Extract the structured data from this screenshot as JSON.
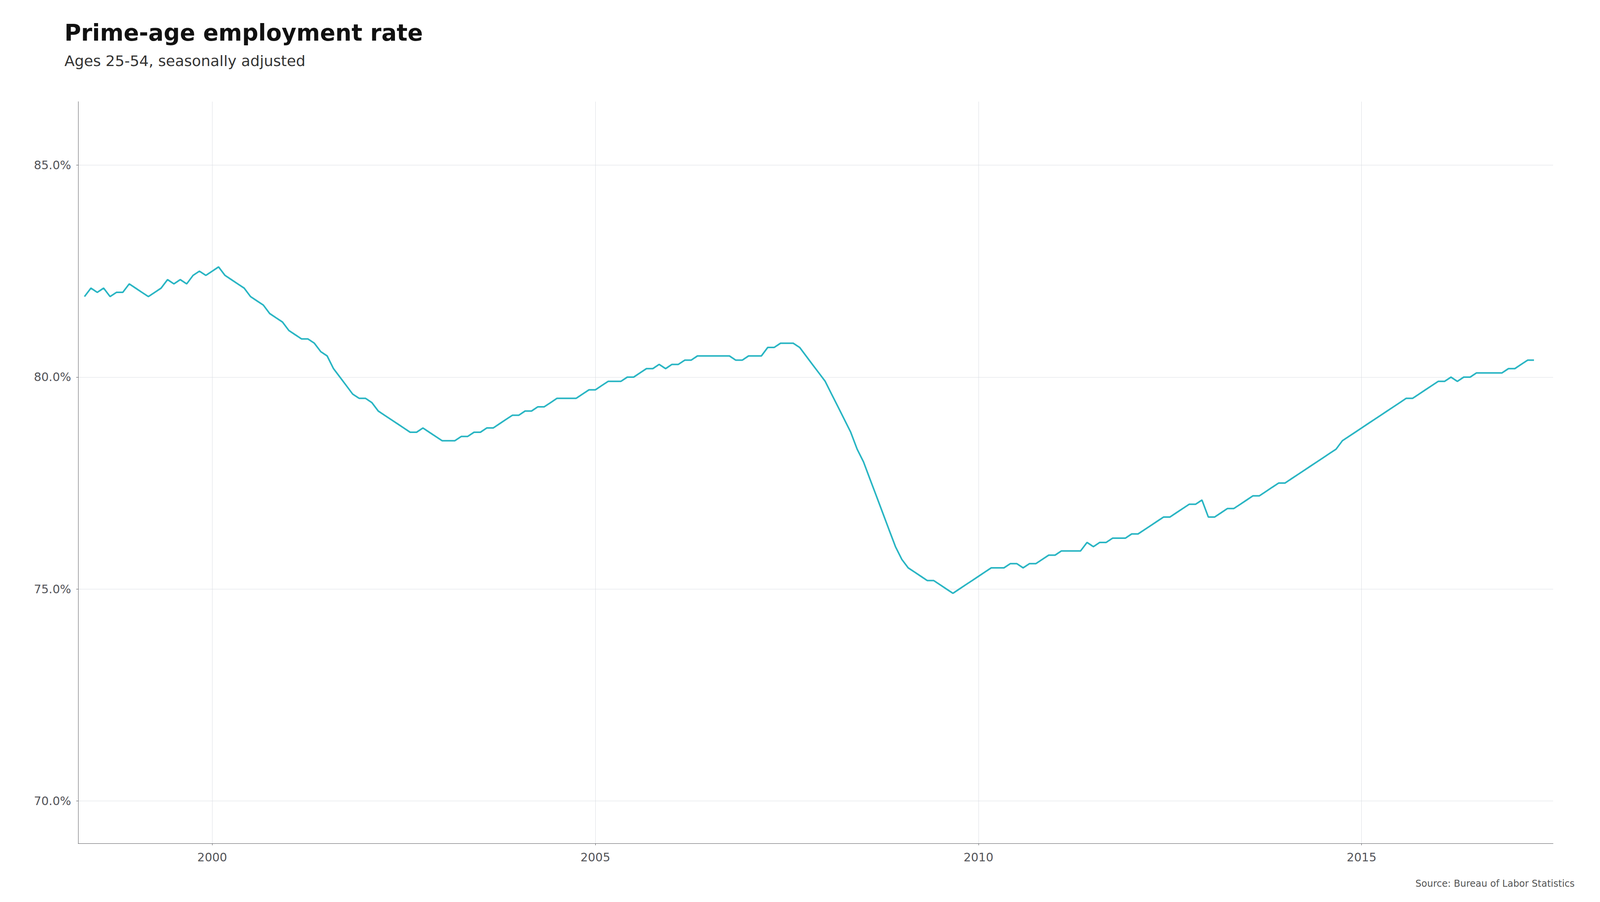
{
  "chart_data": {
    "type": "line",
    "title": "Prime-age employment rate",
    "subtitle": "Ages 25-54, seasonally adjusted",
    "annotations": [
      "Source: Bureau of Labor Statistics"
    ],
    "color": "#29b5c3",
    "grid": true,
    "xlim": [
      1998.25,
      2017.5
    ],
    "xticks": [
      2000,
      2005,
      2010,
      2015
    ],
    "ylim": [
      69.0,
      86.5
    ],
    "yticks": [
      {
        "value": 70.0,
        "label": "70.0%"
      },
      {
        "value": 75.0,
        "label": "75.0%"
      },
      {
        "value": 80.0,
        "label": "80.0%"
      },
      {
        "value": 85.0,
        "label": "85.0%"
      }
    ],
    "x": [
      1998.333,
      1998.417,
      1998.5,
      1998.583,
      1998.667,
      1998.75,
      1998.833,
      1998.917,
      1999.0,
      1999.083,
      1999.167,
      1999.25,
      1999.333,
      1999.417,
      1999.5,
      1999.583,
      1999.667,
      1999.75,
      1999.833,
      1999.917,
      2000.0,
      2000.083,
      2000.167,
      2000.25,
      2000.333,
      2000.417,
      2000.5,
      2000.583,
      2000.667,
      2000.75,
      2000.833,
      2000.917,
      2001.0,
      2001.083,
      2001.167,
      2001.25,
      2001.333,
      2001.417,
      2001.5,
      2001.583,
      2001.667,
      2001.75,
      2001.833,
      2001.917,
      2002.0,
      2002.083,
      2002.167,
      2002.25,
      2002.333,
      2002.417,
      2002.5,
      2002.583,
      2002.667,
      2002.75,
      2002.833,
      2002.917,
      2003.0,
      2003.083,
      2003.167,
      2003.25,
      2003.333,
      2003.417,
      2003.5,
      2003.583,
      2003.667,
      2003.75,
      2003.833,
      2003.917,
      2004.0,
      2004.083,
      2004.167,
      2004.25,
      2004.333,
      2004.417,
      2004.5,
      2004.583,
      2004.667,
      2004.75,
      2004.833,
      2004.917,
      2005.0,
      2005.083,
      2005.167,
      2005.25,
      2005.333,
      2005.417,
      2005.5,
      2005.583,
      2005.667,
      2005.75,
      2005.833,
      2005.917,
      2006.0,
      2006.083,
      2006.167,
      2006.25,
      2006.333,
      2006.417,
      2006.5,
      2006.583,
      2006.667,
      2006.75,
      2006.833,
      2006.917,
      2007.0,
      2007.083,
      2007.167,
      2007.25,
      2007.333,
      2007.417,
      2007.5,
      2007.583,
      2007.667,
      2007.75,
      2007.833,
      2007.917,
      2008.0,
      2008.083,
      2008.167,
      2008.25,
      2008.333,
      2008.417,
      2008.5,
      2008.583,
      2008.667,
      2008.75,
      2008.833,
      2008.917,
      2009.0,
      2009.083,
      2009.167,
      2009.25,
      2009.333,
      2009.417,
      2009.5,
      2009.583,
      2009.667,
      2009.75,
      2009.833,
      2009.917,
      2010.0,
      2010.083,
      2010.167,
      2010.25,
      2010.333,
      2010.417,
      2010.5,
      2010.583,
      2010.667,
      2010.75,
      2010.833,
      2010.917,
      2011.0,
      2011.083,
      2011.167,
      2011.25,
      2011.333,
      2011.417,
      2011.5,
      2011.583,
      2011.667,
      2011.75,
      2011.833,
      2011.917,
      2012.0,
      2012.083,
      2012.167,
      2012.25,
      2012.333,
      2012.417,
      2012.5,
      2012.583,
      2012.667,
      2012.75,
      2012.833,
      2012.917,
      2013.0,
      2013.083,
      2013.167,
      2013.25,
      2013.333,
      2013.417,
      2013.5,
      2013.583,
      2013.667,
      2013.75,
      2013.833,
      2013.917,
      2014.0,
      2014.083,
      2014.167,
      2014.25,
      2014.333,
      2014.417,
      2014.5,
      2014.583,
      2014.667,
      2014.75,
      2014.833,
      2014.917,
      2015.0,
      2015.083,
      2015.167,
      2015.25,
      2015.333,
      2015.417,
      2015.5,
      2015.583,
      2015.667,
      2015.75,
      2015.833,
      2015.917,
      2016.0,
      2016.083,
      2016.167,
      2016.25,
      2016.333,
      2016.417,
      2016.5,
      2016.583,
      2016.667,
      2016.75,
      2016.833,
      2016.917,
      2017.0,
      2017.083,
      2017.167,
      2017.25
    ],
    "values": [
      81.9,
      82.1,
      82.0,
      82.1,
      81.9,
      82.0,
      82.0,
      82.2,
      82.1,
      82.0,
      81.9,
      82.0,
      82.1,
      82.3,
      82.2,
      82.3,
      82.2,
      82.4,
      82.5,
      82.4,
      82.5,
      82.6,
      82.4,
      82.3,
      82.2,
      82.1,
      81.9,
      81.8,
      81.7,
      81.5,
      81.4,
      81.3,
      81.1,
      81.0,
      80.9,
      80.9,
      80.8,
      80.6,
      80.5,
      80.2,
      80.0,
      79.8,
      79.6,
      79.5,
      79.5,
      79.4,
      79.2,
      79.1,
      79.0,
      78.9,
      78.8,
      78.7,
      78.7,
      78.8,
      78.7,
      78.6,
      78.5,
      78.5,
      78.5,
      78.6,
      78.6,
      78.7,
      78.7,
      78.8,
      78.8,
      78.9,
      79.0,
      79.1,
      79.1,
      79.2,
      79.2,
      79.3,
      79.3,
      79.4,
      79.5,
      79.5,
      79.5,
      79.5,
      79.6,
      79.7,
      79.7,
      79.8,
      79.9,
      79.9,
      79.9,
      80.0,
      80.0,
      80.1,
      80.2,
      80.2,
      80.3,
      80.2,
      80.3,
      80.3,
      80.4,
      80.4,
      80.5,
      80.5,
      80.5,
      80.5,
      80.5,
      80.5,
      80.4,
      80.4,
      80.5,
      80.5,
      80.5,
      80.7,
      80.7,
      80.8,
      80.8,
      80.8,
      80.7,
      80.5,
      80.3,
      80.1,
      79.9,
      79.6,
      79.3,
      79.0,
      78.7,
      78.3,
      78.0,
      77.6,
      77.2,
      76.8,
      76.4,
      76.0,
      75.7,
      75.5,
      75.4,
      75.3,
      75.2,
      75.2,
      75.1,
      75.0,
      74.9,
      75.0,
      75.1,
      75.2,
      75.3,
      75.4,
      75.5,
      75.5,
      75.5,
      75.6,
      75.6,
      75.5,
      75.6,
      75.6,
      75.7,
      75.8,
      75.8,
      75.9,
      75.9,
      75.9,
      75.9,
      76.1,
      76.0,
      76.1,
      76.1,
      76.2,
      76.2,
      76.2,
      76.3,
      76.3,
      76.4,
      76.5,
      76.6,
      76.7,
      76.7,
      76.8,
      76.9,
      77.0,
      77.0,
      77.1,
      76.7,
      76.7,
      76.8,
      76.9,
      76.9,
      77.0,
      77.1,
      77.2,
      77.2,
      77.3,
      77.4,
      77.5,
      77.5,
      77.6,
      77.7,
      77.8,
      77.9,
      78.0,
      78.1,
      78.2,
      78.3,
      78.5,
      78.6,
      78.7,
      78.8,
      78.9,
      79.0,
      79.1,
      79.2,
      79.3,
      79.4,
      79.5,
      79.5,
      79.6,
      79.7,
      79.8,
      79.9,
      79.9,
      80.0,
      79.9,
      80.0,
      80.0,
      80.1,
      80.1,
      80.1,
      80.1,
      80.1,
      80.2,
      80.2,
      80.3,
      80.4,
      80.4
    ]
  }
}
